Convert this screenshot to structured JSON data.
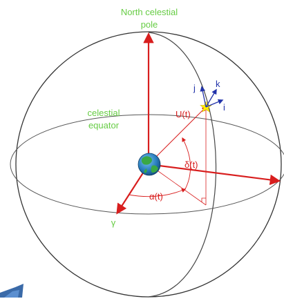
{
  "labels": {
    "north_pole_line1": "North celestial",
    "north_pole_line2": "pole",
    "celestial_line1": "celestial",
    "celestial_line2": "equator",
    "position_vector": "U(t)",
    "declination": "δ(t)",
    "right_ascension": "α(t)",
    "vernal_equinox": "γ",
    "basis_i": "i",
    "basis_j": "j",
    "basis_k": "k"
  },
  "colors": {
    "axis_red": "#d81e1e",
    "label_green": "#66cc44",
    "basis_blue": "#2233aa",
    "star_yellow": "#ffee00",
    "earth_ocean": "#2a7fc0",
    "earth_land": "#3aa845",
    "arrow_corner_blue": "#3a6aa8"
  },
  "icons": {
    "center": "earth-globe-icon",
    "object": "star-icon",
    "corner": "navigation-arrow-icon"
  }
}
